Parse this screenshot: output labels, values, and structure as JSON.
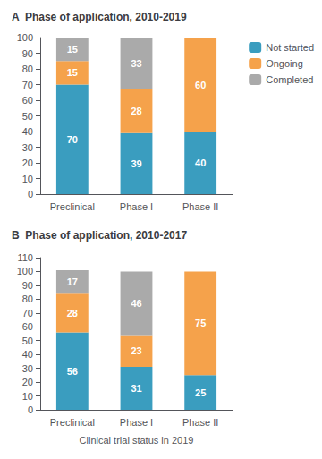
{
  "chart_data": [
    {
      "type": "bar",
      "title": "A  Phase of application, 2010-2019",
      "categories": [
        "Preclinical",
        "Phase I",
        "Phase II"
      ],
      "series": [
        {
          "name": "Not started",
          "color": "#3a9dbf",
          "values": [
            70,
            39,
            40
          ]
        },
        {
          "name": "Ongoing",
          "color": "#f5a24b",
          "values": [
            15,
            28,
            60
          ]
        },
        {
          "name": "Completed",
          "color": "#aaaaaa",
          "values": [
            15,
            33,
            0
          ]
        }
      ],
      "stacked": true,
      "data_labels": true,
      "ylim": [
        0,
        100
      ],
      "yticks": [
        0,
        10,
        20,
        30,
        40,
        50,
        60,
        70,
        80,
        90,
        100
      ],
      "grid": false,
      "legend": "right"
    },
    {
      "type": "bar",
      "title": "B  Phase of application, 2010-2017",
      "categories": [
        "Preclinical",
        "Phase I",
        "Phase II"
      ],
      "xlabel": "Clinical trial status in 2019",
      "series": [
        {
          "name": "Not started",
          "color": "#3a9dbf",
          "values": [
            56,
            31,
            25
          ]
        },
        {
          "name": "Ongoing",
          "color": "#f5a24b",
          "values": [
            28,
            23,
            75
          ]
        },
        {
          "name": "Completed",
          "color": "#aaaaaa",
          "values": [
            17,
            46,
            0
          ]
        }
      ],
      "stacked": true,
      "data_labels": true,
      "ylim": [
        0,
        110
      ],
      "yticks": [
        0,
        10,
        20,
        30,
        40,
        50,
        60,
        70,
        80,
        90,
        100,
        110
      ],
      "grid": false
    }
  ]
}
